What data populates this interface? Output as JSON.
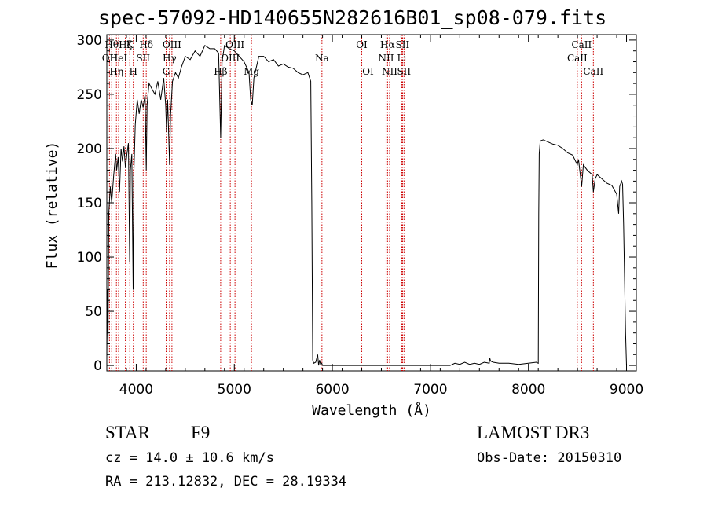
{
  "title": "spec-57092-HD140655N282616B01_sp08-079.fits",
  "info": {
    "class": "STAR",
    "subclass": "F9",
    "survey": "LAMOST DR3",
    "cz": "cz = 14.0 ± 10.6 km/s",
    "obs_date": "Obs-Date: 20150310",
    "radec": "RA = 213.12832, DEC =  28.19334"
  },
  "colors": {
    "spectrum": "#000000",
    "line_marker": "#cc0000",
    "axes": "#000000"
  },
  "chart_data": {
    "type": "line",
    "title": "spec-57092-HD140655N282616B01_sp08-079.fits",
    "xlabel": "Wavelength (Å)",
    "ylabel": "Flux (relative)",
    "xlim": [
      3700,
      9100
    ],
    "ylim": [
      -5,
      305
    ],
    "xticks": [
      4000,
      5000,
      6000,
      7000,
      8000,
      9000
    ],
    "yticks": [
      0,
      50,
      100,
      150,
      200,
      250,
      300
    ],
    "series": [
      {
        "name": "flux",
        "points": [
          [
            3700,
            5
          ],
          [
            3705,
            70
          ],
          [
            3712,
            20
          ],
          [
            3720,
            140
          ],
          [
            3735,
            165
          ],
          [
            3750,
            150
          ],
          [
            3770,
            175
          ],
          [
            3790,
            195
          ],
          [
            3800,
            180
          ],
          [
            3815,
            192
          ],
          [
            3830,
            160
          ],
          [
            3845,
            200
          ],
          [
            3860,
            188
          ],
          [
            3875,
            202
          ],
          [
            3890,
            182
          ],
          [
            3905,
            195
          ],
          [
            3920,
            205
          ],
          [
            3933,
            95
          ],
          [
            3940,
            180
          ],
          [
            3955,
            195
          ],
          [
            3968,
            70
          ],
          [
            3975,
            175
          ],
          [
            3990,
            222
          ],
          [
            4010,
            245
          ],
          [
            4030,
            232
          ],
          [
            4050,
            245
          ],
          [
            4070,
            238
          ],
          [
            4090,
            250
          ],
          [
            4102,
            180
          ],
          [
            4110,
            240
          ],
          [
            4130,
            260
          ],
          [
            4160,
            255
          ],
          [
            4190,
            250
          ],
          [
            4220,
            262
          ],
          [
            4250,
            245
          ],
          [
            4280,
            265
          ],
          [
            4300,
            240
          ],
          [
            4310,
            215
          ],
          [
            4320,
            245
          ],
          [
            4340,
            185
          ],
          [
            4350,
            230
          ],
          [
            4370,
            262
          ],
          [
            4400,
            270
          ],
          [
            4430,
            265
          ],
          [
            4460,
            275
          ],
          [
            4500,
            285
          ],
          [
            4550,
            282
          ],
          [
            4600,
            290
          ],
          [
            4650,
            285
          ],
          [
            4700,
            295
          ],
          [
            4750,
            292
          ],
          [
            4800,
            292
          ],
          [
            4840,
            288
          ],
          [
            4861,
            210
          ],
          [
            4875,
            280
          ],
          [
            4900,
            295
          ],
          [
            4950,
            292
          ],
          [
            5000,
            290
          ],
          [
            5050,
            285
          ],
          [
            5100,
            280
          ],
          [
            5150,
            270
          ],
          [
            5167,
            245
          ],
          [
            5183,
            240
          ],
          [
            5200,
            265
          ],
          [
            5250,
            285
          ],
          [
            5300,
            285
          ],
          [
            5350,
            280
          ],
          [
            5400,
            282
          ],
          [
            5450,
            276
          ],
          [
            5500,
            278
          ],
          [
            5550,
            275
          ],
          [
            5600,
            274
          ],
          [
            5650,
            270
          ],
          [
            5700,
            268
          ],
          [
            5750,
            270
          ],
          [
            5780,
            262
          ],
          [
            5790,
            150
          ],
          [
            5800,
            5
          ],
          [
            5810,
            2
          ],
          [
            5830,
            3
          ],
          [
            5850,
            10
          ],
          [
            5860,
            0
          ],
          [
            5870,
            5
          ],
          [
            5880,
            1
          ],
          [
            5892,
            2
          ],
          [
            5900,
            0
          ],
          [
            5950,
            0
          ],
          [
            6200,
            0
          ],
          [
            6500,
            0
          ],
          [
            6800,
            0
          ],
          [
            7100,
            0
          ],
          [
            7200,
            0
          ],
          [
            7250,
            2
          ],
          [
            7300,
            1
          ],
          [
            7350,
            3
          ],
          [
            7400,
            1
          ],
          [
            7450,
            2
          ],
          [
            7500,
            1
          ],
          [
            7550,
            3
          ],
          [
            7600,
            2
          ],
          [
            7605,
            7
          ],
          [
            7615,
            4
          ],
          [
            7640,
            3
          ],
          [
            7700,
            2
          ],
          [
            7800,
            2
          ],
          [
            7900,
            1
          ],
          [
            8000,
            2
          ],
          [
            8080,
            3
          ],
          [
            8100,
            2
          ],
          [
            8105,
            140
          ],
          [
            8110,
            195
          ],
          [
            8120,
            207
          ],
          [
            8150,
            208
          ],
          [
            8200,
            206
          ],
          [
            8250,
            204
          ],
          [
            8300,
            203
          ],
          [
            8350,
            200
          ],
          [
            8400,
            196
          ],
          [
            8450,
            194
          ],
          [
            8498,
            185
          ],
          [
            8510,
            190
          ],
          [
            8542,
            165
          ],
          [
            8560,
            185
          ],
          [
            8600,
            180
          ],
          [
            8650,
            176
          ],
          [
            8662,
            160
          ],
          [
            8680,
            172
          ],
          [
            8700,
            176
          ],
          [
            8750,
            172
          ],
          [
            8800,
            168
          ],
          [
            8850,
            166
          ],
          [
            8900,
            158
          ],
          [
            8920,
            140
          ],
          [
            8930,
            165
          ],
          [
            8950,
            170
          ],
          [
            8960,
            167
          ],
          [
            8970,
            130
          ],
          [
            8990,
            30
          ],
          [
            9000,
            0
          ]
        ]
      }
    ],
    "lines": [
      {
        "wave": 3727,
        "label": "OII",
        "row": 2
      },
      {
        "wave": 3750,
        "label": "Hθ",
        "row": 1
      },
      {
        "wave": 3798,
        "label": "Hη",
        "row": 3
      },
      {
        "wave": 3820,
        "label": "HeI",
        "row": 2
      },
      {
        "wave": 3889,
        "label": "Hζ",
        "row": 1
      },
      {
        "wave": 3934,
        "label": "K",
        "row": 1
      },
      {
        "wave": 3970,
        "label": "H",
        "row": 3
      },
      {
        "wave": 4071,
        "label": "SII",
        "row": 2
      },
      {
        "wave": 4102,
        "label": "Hδ",
        "row": 1
      },
      {
        "wave": 4305,
        "label": "G",
        "row": 3
      },
      {
        "wave": 4340,
        "label": "Hγ",
        "row": 2
      },
      {
        "wave": 4364,
        "label": "OIII",
        "row": 1
      },
      {
        "wave": 4861,
        "label": "Hβ",
        "row": 3
      },
      {
        "wave": 4959,
        "label": "OIII",
        "row": 2
      },
      {
        "wave": 5007,
        "label": "OIII",
        "row": 1
      },
      {
        "wave": 5175,
        "label": "Mg",
        "row": 3
      },
      {
        "wave": 5894,
        "label": "Na",
        "row": 2
      },
      {
        "wave": 6300,
        "label": "OI",
        "row": 1
      },
      {
        "wave": 6364,
        "label": "OI",
        "row": 3
      },
      {
        "wave": 6548,
        "label": "NII",
        "row": 2
      },
      {
        "wave": 6563,
        "label": "Hα",
        "row": 1
      },
      {
        "wave": 6584,
        "label": "NII",
        "row": 3
      },
      {
        "wave": 6708,
        "label": "Li",
        "row": 2
      },
      {
        "wave": 6716,
        "label": "SII",
        "row": 1
      },
      {
        "wave": 6731,
        "label": "SII",
        "row": 3
      },
      {
        "wave": 8498,
        "label": "CaII",
        "row": 2
      },
      {
        "wave": 8542,
        "label": "CaII",
        "row": 1
      },
      {
        "wave": 8662,
        "label": "CaII",
        "row": 3
      }
    ]
  }
}
